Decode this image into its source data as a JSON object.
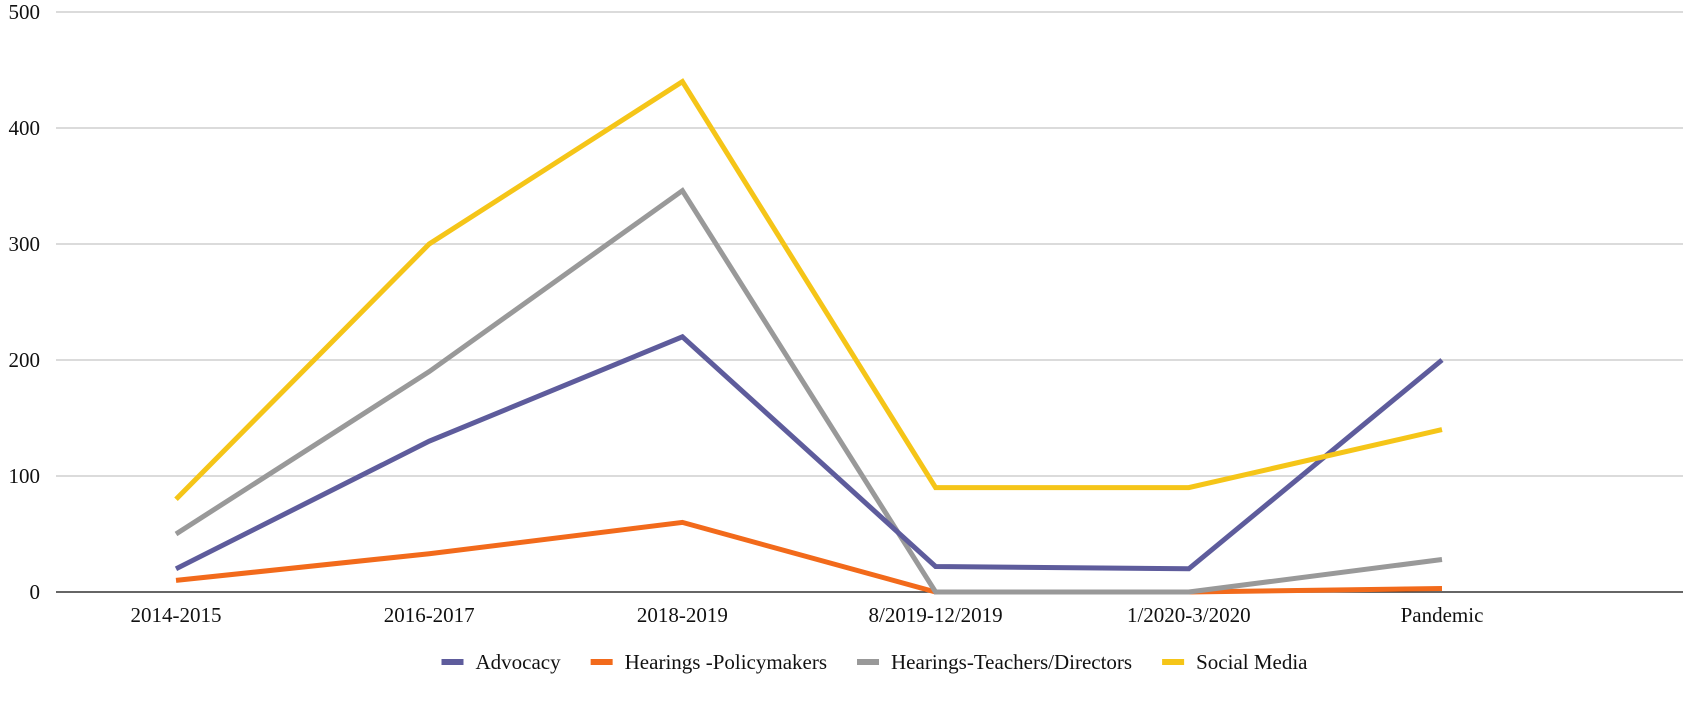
{
  "chart_data": {
    "type": "line",
    "categories": [
      "2014-2015",
      "2016-2017",
      "2018-2019",
      "8/2019-12/2019",
      "1/2020-3/2020",
      "Pandemic"
    ],
    "ylim": [
      0,
      500
    ],
    "yticks": [
      0,
      100,
      200,
      300,
      400,
      500
    ],
    "grid": true,
    "legend_position": "bottom",
    "series": [
      {
        "name": "Advocacy",
        "color": "#5e5c9c",
        "values": [
          20,
          130,
          220,
          22,
          20,
          200
        ]
      },
      {
        "name": "Hearings -Policymakers",
        "color": "#f26a1b",
        "values": [
          10,
          33,
          60,
          0,
          0,
          3
        ]
      },
      {
        "name": "Hearings-Teachers/Directors",
        "color": "#999999",
        "values": [
          50,
          190,
          346,
          0,
          0,
          28
        ]
      },
      {
        "name": "Social Media",
        "color": "#f5c518",
        "values": [
          80,
          300,
          440,
          90,
          90,
          140
        ]
      }
    ]
  }
}
